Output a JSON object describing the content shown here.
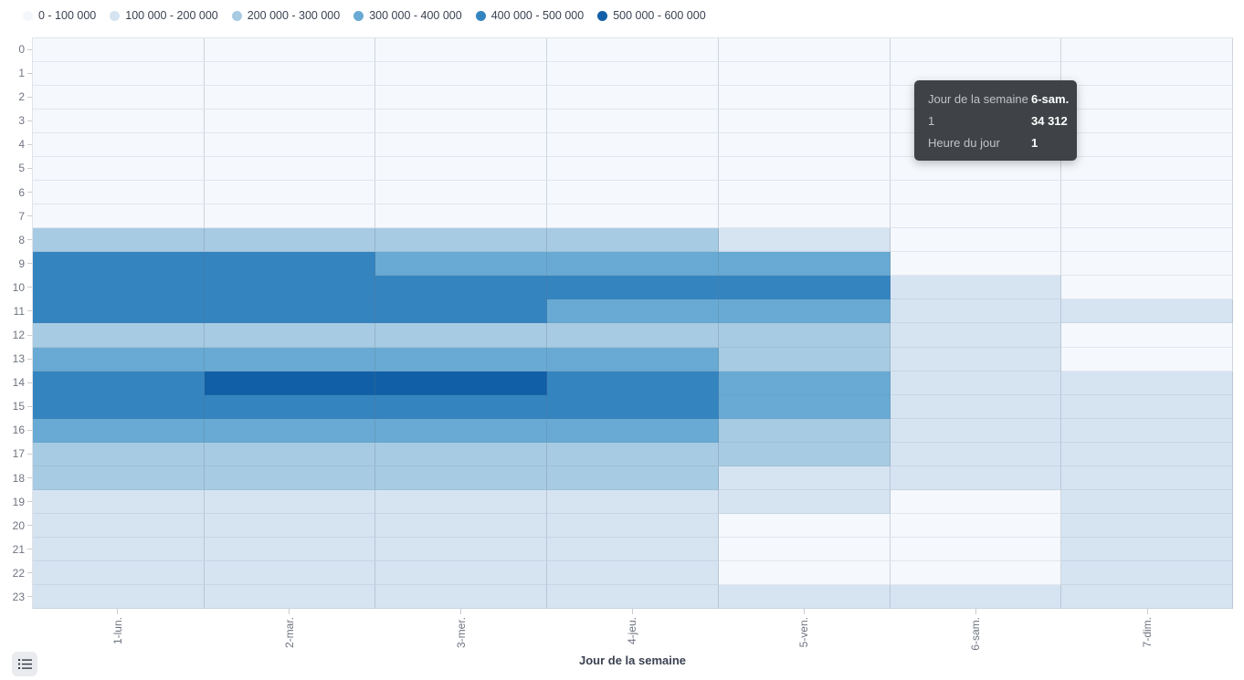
{
  "legend": {
    "items": [
      {
        "label": "0 - 100 000",
        "color": "#f3f7fb"
      },
      {
        "label": "100 000 - 200 000",
        "color": "#d6e4f2"
      },
      {
        "label": "200 000 - 300 000",
        "color": "#a7cbe3"
      },
      {
        "label": "300 000 - 400 000",
        "color": "#68aad3"
      },
      {
        "label": "400 000 - 500 000",
        "color": "#3484c0"
      },
      {
        "label": "500 000 - 600 000",
        "color": "#115fa6"
      }
    ]
  },
  "chart_data": {
    "type": "heatmap",
    "title": "",
    "xlabel": "Jour de la semaine",
    "ylabel": "",
    "legend_position": "top-left",
    "grid": true,
    "x_categories": [
      "1-lun.",
      "2-mar.",
      "3-mer.",
      "4-jeu.",
      "5-ven.",
      "6-sam.",
      "7-dim."
    ],
    "y_categories": [
      "0",
      "1",
      "2",
      "3",
      "4",
      "5",
      "6",
      "7",
      "8",
      "9",
      "10",
      "11",
      "12",
      "13",
      "14",
      "15",
      "16",
      "17",
      "18",
      "19",
      "20",
      "21",
      "22",
      "23"
    ],
    "levels": [
      {
        "label": "0 - 100 000",
        "min": 0,
        "max": 100000,
        "color": "#f5f8fc"
      },
      {
        "label": "100 000 - 200 000",
        "min": 100000,
        "max": 200000,
        "color": "#d6e4f2"
      },
      {
        "label": "200 000 - 300 000",
        "min": 200000,
        "max": 300000,
        "color": "#a7cbe3"
      },
      {
        "label": "300 000 - 400 000",
        "min": 300000,
        "max": 400000,
        "color": "#68aad3"
      },
      {
        "label": "400 000 - 500 000",
        "min": 400000,
        "max": 500000,
        "color": "#3484c0"
      },
      {
        "label": "500 000 - 600 000",
        "min": 500000,
        "max": 600000,
        "color": "#115fa6"
      }
    ],
    "series": [
      {
        "day": "1-lun.",
        "hour_levels": [
          1,
          1,
          1,
          1,
          1,
          1,
          1,
          1,
          3,
          5,
          5,
          5,
          3,
          4,
          5,
          5,
          4,
          3,
          3,
          2,
          2,
          2,
          2,
          2
        ]
      },
      {
        "day": "2-mar.",
        "hour_levels": [
          1,
          1,
          1,
          1,
          1,
          1,
          1,
          1,
          3,
          5,
          5,
          5,
          3,
          4,
          6,
          5,
          4,
          3,
          3,
          2,
          2,
          2,
          2,
          2
        ]
      },
      {
        "day": "3-mer.",
        "hour_levels": [
          1,
          1,
          1,
          1,
          1,
          1,
          1,
          1,
          3,
          4,
          5,
          5,
          3,
          4,
          6,
          5,
          4,
          3,
          3,
          2,
          2,
          2,
          2,
          2
        ]
      },
      {
        "day": "4-jeu.",
        "hour_levels": [
          1,
          1,
          1,
          1,
          1,
          1,
          1,
          1,
          3,
          4,
          5,
          4,
          3,
          4,
          5,
          5,
          4,
          3,
          3,
          2,
          2,
          2,
          2,
          2
        ]
      },
      {
        "day": "5-ven.",
        "hour_levels": [
          1,
          1,
          1,
          1,
          1,
          1,
          1,
          1,
          2,
          4,
          5,
          4,
          3,
          3,
          4,
          4,
          3,
          3,
          2,
          2,
          1,
          1,
          1,
          2
        ]
      },
      {
        "day": "6-sam.",
        "hour_levels": [
          1,
          1,
          1,
          1,
          1,
          1,
          1,
          1,
          1,
          1,
          2,
          2,
          2,
          2,
          2,
          2,
          2,
          2,
          2,
          1,
          1,
          1,
          1,
          2
        ]
      },
      {
        "day": "7-dim.",
        "hour_levels": [
          1,
          1,
          1,
          1,
          1,
          1,
          1,
          1,
          1,
          1,
          1,
          2,
          1,
          1,
          2,
          2,
          2,
          2,
          2,
          2,
          2,
          2,
          2,
          2
        ]
      }
    ],
    "hovered_cell": {
      "day": "6-sam.",
      "hour": 1,
      "value": 34312
    }
  },
  "tooltip": {
    "rows": [
      {
        "label": "Jour de la semaine",
        "value": "6-sam."
      },
      {
        "label": "1",
        "value": "34 312"
      },
      {
        "label": "Heure du jour",
        "value": "1"
      }
    ]
  },
  "axis": {
    "x_title": "Jour de la semaine"
  }
}
